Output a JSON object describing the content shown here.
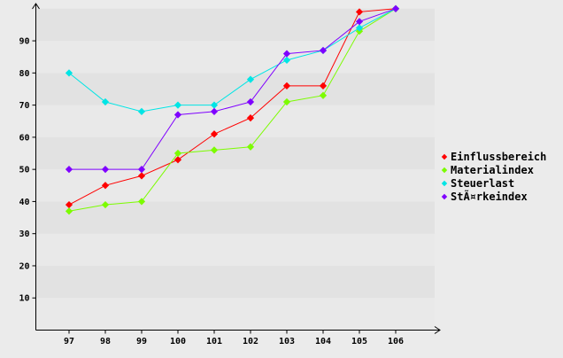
{
  "window": {
    "background_color": "#ebebeb",
    "plot_band_light": "#e9e9e9",
    "plot_band_dark": "#e2e2e2",
    "axis_color": "#000000",
    "text_color": "#000000"
  },
  "chart_data": {
    "type": "line",
    "title": "",
    "xlabel": "",
    "ylabel": "",
    "x": [
      97,
      98,
      99,
      100,
      101,
      102,
      103,
      104,
      105,
      106
    ],
    "x_tick_labels": [
      "97",
      "98",
      "99",
      "100",
      "101",
      "102",
      "103",
      "104",
      "105",
      "106"
    ],
    "y_ticks": [
      10,
      20,
      30,
      40,
      50,
      60,
      70,
      80,
      90
    ],
    "ylim": [
      0,
      100
    ],
    "grid": "banded-background",
    "marker": "diamond",
    "legend_position": "right",
    "series": [
      {
        "name": "Einflussbereich",
        "color": "#ff0000",
        "values": [
          39,
          45,
          48,
          53,
          61,
          66,
          76,
          76,
          99,
          100
        ]
      },
      {
        "name": "Materialindex",
        "color": "#7cfc00",
        "values": [
          37,
          39,
          40,
          55,
          56,
          57,
          71,
          73,
          93,
          100
        ]
      },
      {
        "name": "Steuerlast",
        "color": "#00e5e5",
        "values": [
          80,
          71,
          68,
          70,
          70,
          78,
          84,
          87,
          94,
          100
        ]
      },
      {
        "name": "StÃ¤rkeindex",
        "color": "#7f00ff",
        "values": [
          50,
          50,
          50,
          67,
          68,
          71,
          86,
          87,
          96,
          100
        ]
      }
    ]
  }
}
